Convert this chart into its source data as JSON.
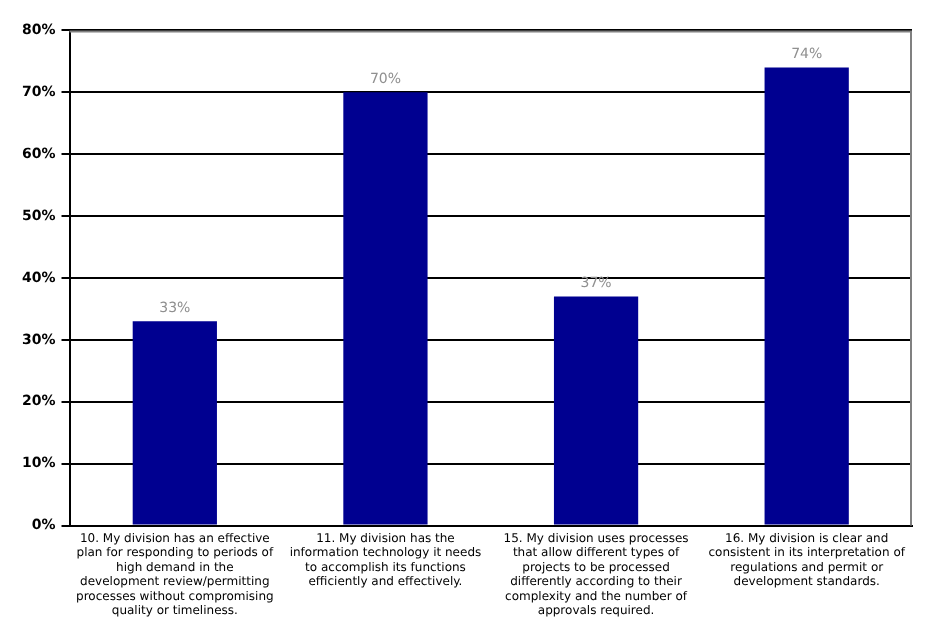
{
  "chart_data": {
    "type": "bar",
    "categories": [
      "10. My division has an effective plan for responding to periods of high demand in the development review/permitting processes without compromising quality or timeliness.",
      "11. My division has the information technology it needs to accomplish its functions efficiently and effectively.",
      "15. My division uses processes that allow different types of projects to be processed differently according to their complexity and the number of approvals required.",
      "16. My division is clear and consistent in its interpretation of regulations and permit or development standards."
    ],
    "values": [
      33,
      70,
      37,
      74
    ],
    "color": "#000090",
    "value_labels": [
      "33%",
      "70%",
      "37%",
      "74%"
    ],
    "ylim": [
      0,
      80
    ],
    "yticks": [
      {
        "value": 0,
        "label": "0%"
      },
      {
        "value": 10,
        "label": "10%"
      },
      {
        "value": 20,
        "label": "20%"
      },
      {
        "value": 30,
        "label": "30%"
      },
      {
        "value": 40,
        "label": "40%"
      },
      {
        "value": 50,
        "label": "50%"
      },
      {
        "value": 60,
        "label": "60%"
      },
      {
        "value": 70,
        "label": "70%"
      },
      {
        "value": 80,
        "label": "80%"
      }
    ],
    "grid": "y",
    "legend": false
  }
}
